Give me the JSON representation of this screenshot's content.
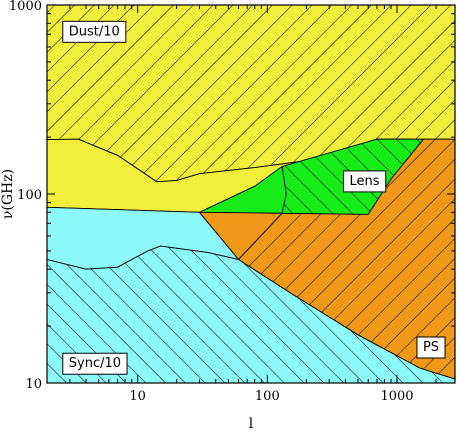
{
  "chart_data": {
    "type": "area",
    "xlabel": "l",
    "ylabel": "ν(GHz)",
    "xscale": "log",
    "yscale": "log",
    "xlim": [
      2,
      2800
    ],
    "ylim": [
      10,
      1000
    ],
    "x_ticks": [
      {
        "value": 10,
        "label": "10"
      },
      {
        "value": 100,
        "label": "100"
      },
      {
        "value": 1000,
        "label": "1000"
      }
    ],
    "y_ticks": [
      {
        "value": 10,
        "label": "10"
      },
      {
        "value": 100,
        "label": "100"
      },
      {
        "value": 1000,
        "label": "1000"
      }
    ],
    "grid": false,
    "colors": {
      "dust": "#f2ee3c",
      "sync": "#8cfafa",
      "lens": "#18ec18",
      "ps": "#f09818",
      "hatch": "#000000"
    },
    "regions": [
      {
        "name": "Dust/10",
        "label": "Dust/10",
        "color": "dust",
        "hatch": "back",
        "polygon": [
          [
            2,
            1000
          ],
          [
            2800,
            1000
          ],
          [
            2800,
            195
          ],
          [
            1300,
            195
          ],
          [
            700,
            195
          ],
          [
            200,
            150
          ],
          [
            80,
            138
          ],
          [
            30,
            128
          ],
          [
            20,
            118
          ],
          [
            14,
            116
          ],
          [
            12,
            125
          ],
          [
            7,
            160
          ],
          [
            3.5,
            195
          ],
          [
            2,
            194
          ]
        ]
      },
      {
        "name": "Dust (unhatched)",
        "label": "",
        "color": "dust",
        "hatch": "none",
        "polygon": [
          [
            2,
            194
          ],
          [
            3.5,
            195
          ],
          [
            7,
            160
          ],
          [
            12,
            125
          ],
          [
            14,
            116
          ],
          [
            20,
            118
          ],
          [
            30,
            128
          ],
          [
            80,
            138
          ],
          [
            200,
            150
          ],
          [
            700,
            195
          ],
          [
            1300,
            195
          ],
          [
            80,
            110
          ],
          [
            30,
            80
          ],
          [
            2,
            85
          ]
        ]
      },
      {
        "name": "Sync (unhatched)",
        "label": "",
        "color": "sync",
        "hatch": "none",
        "polygon": [
          [
            2,
            85
          ],
          [
            30,
            80
          ],
          [
            60,
            45
          ],
          [
            35,
            49
          ],
          [
            15,
            53
          ],
          [
            12,
            50
          ],
          [
            7,
            41
          ],
          [
            4,
            40
          ],
          [
            2,
            45
          ]
        ]
      },
      {
        "name": "Sync/10",
        "label": "Sync/10",
        "color": "sync",
        "hatch": "fwd",
        "polygon": [
          [
            2,
            45
          ],
          [
            4,
            40
          ],
          [
            7,
            41
          ],
          [
            12,
            50
          ],
          [
            15,
            53
          ],
          [
            35,
            49
          ],
          [
            60,
            45
          ],
          [
            150,
            30
          ],
          [
            500,
            18
          ],
          [
            1500,
            12
          ],
          [
            2800,
            10.5
          ],
          [
            2800,
            10
          ],
          [
            2,
            10
          ]
        ]
      },
      {
        "name": "Lens (unhatched)",
        "label": "",
        "color": "lens",
        "hatch": "none",
        "polygon": [
          [
            30,
            80
          ],
          [
            80,
            110
          ],
          [
            130,
            140
          ],
          [
            140,
            100
          ],
          [
            130,
            79
          ]
        ]
      },
      {
        "name": "Lens",
        "label": "Lens",
        "color": "lens",
        "hatch": "fwd",
        "polygon": [
          [
            130,
            140
          ],
          [
            700,
            195
          ],
          [
            1300,
            195
          ],
          [
            1600,
            195
          ],
          [
            900,
            120
          ],
          [
            600,
            78
          ],
          [
            130,
            79
          ],
          [
            140,
            100
          ]
        ]
      },
      {
        "name": "PS (unhatched)",
        "label": "",
        "color": "ps",
        "hatch": "none",
        "polygon": [
          [
            30,
            80
          ],
          [
            130,
            79
          ],
          [
            60,
            45
          ]
        ]
      },
      {
        "name": "PS",
        "label": "PS",
        "color": "ps",
        "hatch": "back",
        "polygon": [
          [
            60,
            45
          ],
          [
            130,
            79
          ],
          [
            600,
            78
          ],
          [
            900,
            120
          ],
          [
            1600,
            195
          ],
          [
            2800,
            195
          ],
          [
            2800,
            10.5
          ],
          [
            1500,
            12
          ],
          [
            500,
            18
          ],
          [
            150,
            30
          ]
        ]
      }
    ],
    "labels": [
      {
        "text": "Dust/10",
        "x": 2.6,
        "y": 730
      },
      {
        "text": "Lens",
        "x": 380,
        "y": 118
      },
      {
        "text": "Sync/10",
        "x": 2.6,
        "y": 12.8
      },
      {
        "text": "PS",
        "x": 1400,
        "y": 15.6
      }
    ]
  }
}
